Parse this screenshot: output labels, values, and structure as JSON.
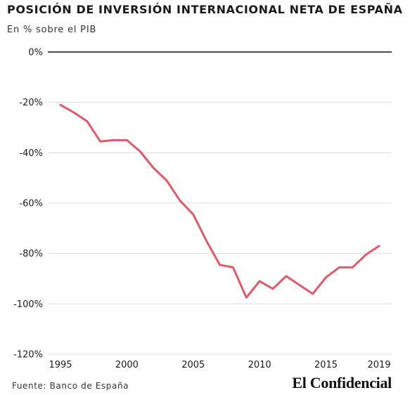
{
  "header": {
    "title": "POSICIÓN DE INVERSIÓN INTERNACIONAL NETA DE ESPAÑA",
    "subtitle": "En % sobre el PIB"
  },
  "footer": {
    "source": "Fuente: Banco de España",
    "brand": "El Confidencial"
  },
  "colors": {
    "line": "#e05a67",
    "grid": "#dddddd",
    "zero_line": "#111111",
    "text": "#1a1a1a"
  },
  "chart_data": {
    "type": "line",
    "title": "POSICIÓN DE INVERSIÓN INTERNACIONAL NETA DE ESPAÑA",
    "subtitle": "En % sobre el PIB",
    "xlabel": "",
    "ylabel": "",
    "xlim": [
      1995,
      2019
    ],
    "ylim": [
      -120,
      0
    ],
    "grid": true,
    "legend": "none",
    "x_ticks": [
      1995,
      2000,
      2005,
      2010,
      2015,
      2019
    ],
    "x_tick_labels": [
      "1995",
      "2000",
      "2005",
      "2010",
      "2015",
      "2019"
    ],
    "y_ticks": [
      0,
      -20,
      -40,
      -60,
      -80,
      -100,
      -120
    ],
    "y_tick_labels": [
      "0%",
      "-20%",
      "-40%",
      "-60%",
      "-80%",
      "-100%",
      "-120%"
    ],
    "series": [
      {
        "x": [
          1995,
          1996,
          1997,
          1998,
          1999,
          2000,
          2001,
          2002,
          2003,
          2004,
          2005,
          2006,
          2007,
          2008,
          2009,
          2010,
          2011,
          2012,
          2013,
          2014,
          2015,
          2016,
          2017,
          2018,
          2019
        ],
        "values": [
          -21,
          -24,
          -27.5,
          -35.5,
          -35,
          -35,
          -39.5,
          -46,
          -51,
          -59,
          -64.5,
          -75,
          -84.5,
          -85.5,
          -97.5,
          -91,
          -94,
          -89,
          -92.5,
          -96,
          -89.5,
          -85.5,
          -85.5,
          -80.5,
          -77
        ]
      }
    ]
  }
}
